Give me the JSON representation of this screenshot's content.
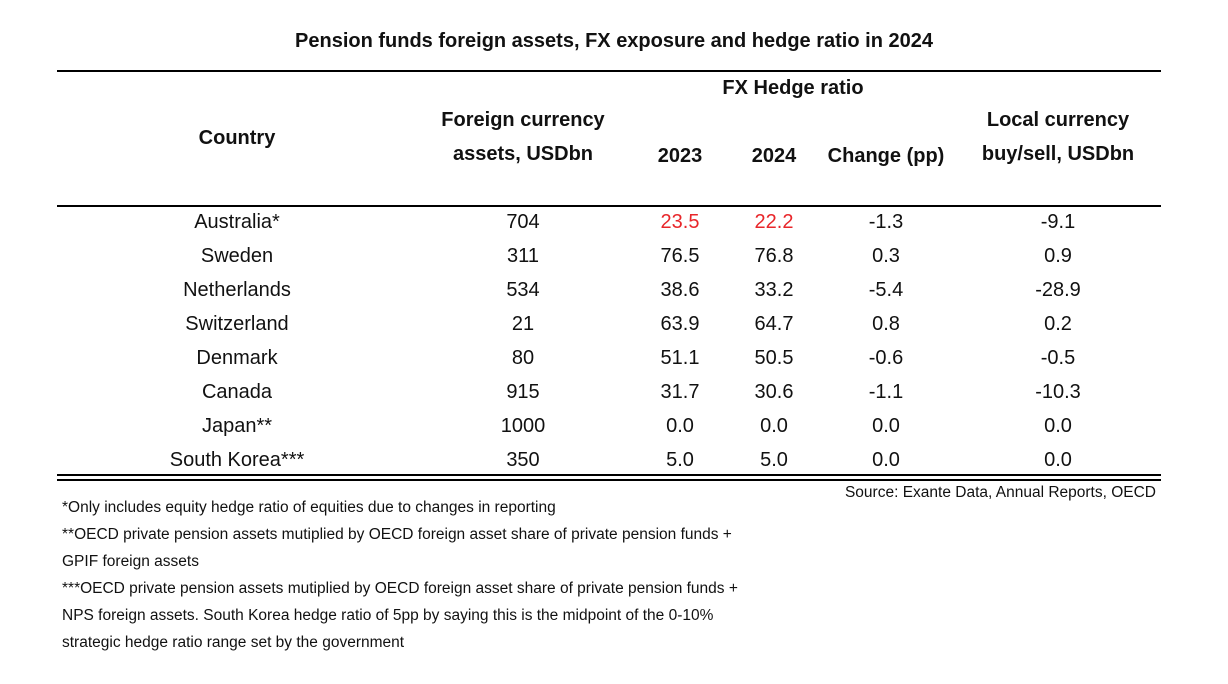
{
  "title": "Pension funds foreign assets, FX exposure and hedge ratio in 2024",
  "headers": {
    "country": "Country",
    "foreign1": "Foreign currency",
    "foreign2": "assets, USDbn",
    "group": "FX Hedge ratio",
    "y2023": "2023",
    "y2024": "2024",
    "change": "Change (pp)",
    "local1": "Local currency",
    "local2": "buy/sell, USDbn"
  },
  "highlight_color": "#e8262a",
  "rows": [
    {
      "country": "Australia*",
      "assets": "704",
      "h2023": "23.5",
      "h2024": "22.2",
      "change": "-1.3",
      "local": "-9.1",
      "highlight": true
    },
    {
      "country": "Sweden",
      "assets": "311",
      "h2023": "76.5",
      "h2024": "76.8",
      "change": "0.3",
      "local": "0.9"
    },
    {
      "country": "Netherlands",
      "assets": "534",
      "h2023": "38.6",
      "h2024": "33.2",
      "change": "-5.4",
      "local": "-28.9"
    },
    {
      "country": "Switzerland",
      "assets": "21",
      "h2023": "63.9",
      "h2024": "64.7",
      "change": "0.8",
      "local": "0.2"
    },
    {
      "country": "Denmark",
      "assets": "80",
      "h2023": "51.1",
      "h2024": "50.5",
      "change": "-0.6",
      "local": "-0.5"
    },
    {
      "country": "Canada",
      "assets": "915",
      "h2023": "31.7",
      "h2024": "30.6",
      "change": "-1.1",
      "local": "-10.3"
    },
    {
      "country": "Japan**",
      "assets": "1000",
      "h2023": "0.0",
      "h2024": "0.0",
      "change": "0.0",
      "local": "0.0"
    },
    {
      "country": "South Korea***",
      "assets": "350",
      "h2023": "5.0",
      "h2024": "5.0",
      "change": "0.0",
      "local": "0.0"
    }
  ],
  "footnotes": [
    "*Only includes equity hedge ratio of equities due to changes in reporting",
    "**OECD private pension assets mutiplied by OECD foreign asset share of private pension funds + GPIF foreign assets",
    "***OECD private pension assets mutiplied by OECD foreign asset share of private pension funds + NPS foreign assets. South Korea hedge ratio of 5pp by saying this is the midpoint of the 0-10% strategic hedge ratio range set by the government"
  ],
  "source": "Source: Exante Data, Annual Reports, OECD"
}
